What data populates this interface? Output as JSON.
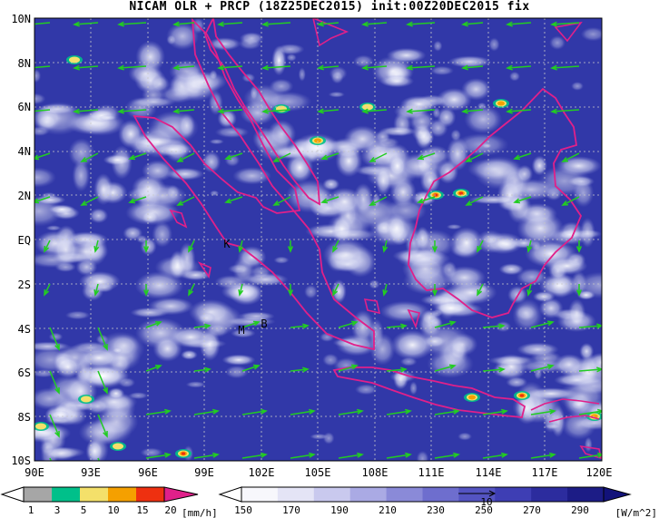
{
  "title": "NICAM OLR + PRCP (18Z25DEC2015) init:00Z20DEC2015 fix",
  "lat_labels": [
    "10N",
    "8N",
    "6N",
    "4N",
    "2N",
    "EQ",
    "2S",
    "4S",
    "6S",
    "8S",
    "10S"
  ],
  "lon_labels": [
    "90E",
    "93E",
    "96E",
    "99E",
    "102E",
    "105E",
    "108E",
    "111E",
    "114E",
    "117E",
    "120E"
  ],
  "place_labels": [
    "K",
    "M",
    "B"
  ],
  "precip_colorbar": {
    "ticks": [
      "1",
      "3",
      "5",
      "10",
      "15",
      "20"
    ],
    "unit": "[mm/h]",
    "colors": [
      "#a6a6a6",
      "#00c08a",
      "#f4e06a",
      "#f5a000",
      "#ee3010",
      "#e0208a"
    ]
  },
  "olr_colorbar": {
    "ticks": [
      "150",
      "170",
      "190",
      "210",
      "230",
      "250",
      "270",
      "290"
    ],
    "unit": "[W/m^2]",
    "colors": [
      "#f7f7fc",
      "#e4e4f6",
      "#c9c9ee",
      "#aaaae4",
      "#8a8ad8",
      "#6e6ece",
      "#5454c2",
      "#3e3eb4",
      "#2c2c9e",
      "#1c1c86"
    ]
  },
  "wind_vector_reference": "10",
  "colors": {
    "ocean_blue": "#2f34a6",
    "coastline": "#e0208a",
    "wind_vectors": "#22cc22",
    "grid": "#c8c8c8"
  }
}
